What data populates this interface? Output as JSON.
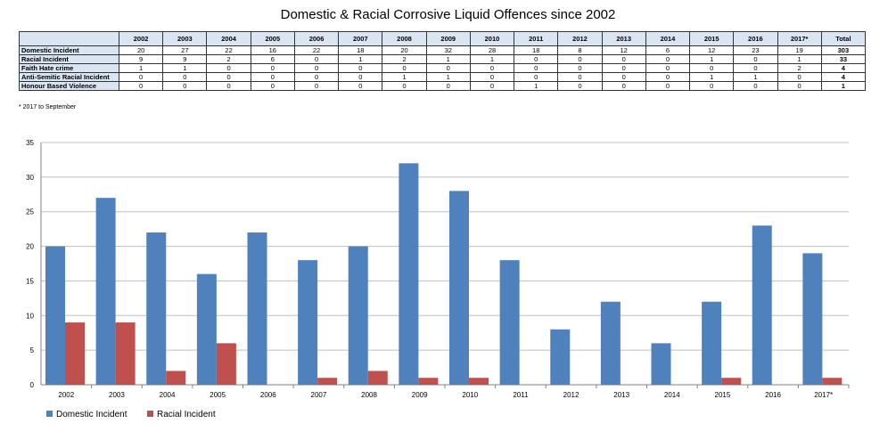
{
  "title": "Domestic & Racial Corrosive Liquid Offences since 2002",
  "table": {
    "columns": [
      "2002",
      "2003",
      "2004",
      "2005",
      "2006",
      "2007",
      "2008",
      "2009",
      "2010",
      "2011",
      "2012",
      "2013",
      "2014",
      "2015",
      "2016",
      "2017*",
      "Total"
    ],
    "rows": [
      {
        "label": "Domestic Incident",
        "values": [
          "20",
          "27",
          "22",
          "16",
          "22",
          "18",
          "20",
          "32",
          "28",
          "18",
          "8",
          "12",
          "6",
          "12",
          "23",
          "19",
          "303"
        ]
      },
      {
        "label": "Racial Incident",
        "values": [
          "9",
          "9",
          "2",
          "6",
          "0",
          "1",
          "2",
          "1",
          "1",
          "0",
          "0",
          "0",
          "0",
          "1",
          "0",
          "1",
          "33"
        ]
      },
      {
        "label": "Faith Hate crime",
        "values": [
          "1",
          "1",
          "0",
          "0",
          "0",
          "0",
          "0",
          "0",
          "0",
          "0",
          "0",
          "0",
          "0",
          "0",
          "0",
          "2",
          "4"
        ]
      },
      {
        "label": "Anti-Semitic Racial Incident",
        "values": [
          "0",
          "0",
          "0",
          "0",
          "0",
          "0",
          "1",
          "1",
          "0",
          "0",
          "0",
          "0",
          "0",
          "1",
          "1",
          "0",
          "4"
        ]
      },
      {
        "label": "Honour Based Violence",
        "values": [
          "0",
          "0",
          "0",
          "0",
          "0",
          "0",
          "0",
          "0",
          "0",
          "1",
          "0",
          "0",
          "0",
          "0",
          "0",
          "0",
          "1"
        ]
      }
    ]
  },
  "footnote": "* 2017 to September",
  "colors": {
    "domestic": "#4f81bd",
    "racial": "#c0504d",
    "grid": "#bfbfbf",
    "header_fill": "#dbe5f1"
  },
  "chart_data": {
    "type": "bar",
    "title": "",
    "xlabel": "",
    "ylabel": "",
    "categories": [
      "2002",
      "2003",
      "2004",
      "2005",
      "2006",
      "2007",
      "2008",
      "2009",
      "2010",
      "2011",
      "2012",
      "2013",
      "2014",
      "2015",
      "2016",
      "2017*"
    ],
    "series": [
      {
        "name": "Domestic Incident",
        "values": [
          20,
          27,
          22,
          16,
          22,
          18,
          20,
          32,
          28,
          18,
          8,
          12,
          6,
          12,
          23,
          19
        ]
      },
      {
        "name": "Racial Incident",
        "values": [
          9,
          9,
          2,
          6,
          0,
          1,
          2,
          1,
          1,
          0,
          0,
          0,
          0,
          1,
          0,
          1
        ]
      }
    ],
    "ylim": [
      0,
      35
    ],
    "yticks": [
      0,
      5,
      10,
      15,
      20,
      25,
      30,
      35
    ],
    "grid": true,
    "legend": "bottom-left"
  }
}
